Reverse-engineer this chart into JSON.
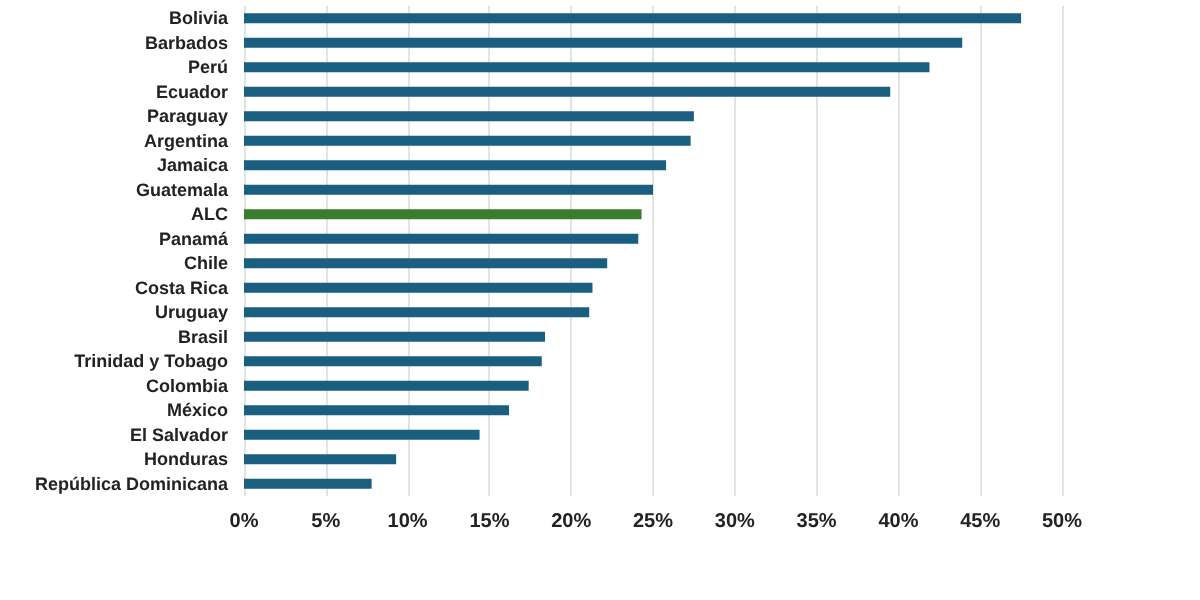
{
  "chart_data": {
    "type": "bar",
    "orientation": "horizontal",
    "categories": [
      "Bolivia",
      "Barbados",
      "Perú",
      "Ecuador",
      "Paraguay",
      "Argentina",
      "Jamaica",
      "Guatemala",
      "ALC",
      "Panamá",
      "Chile",
      "Costa Rica",
      "Uruguay",
      "Brasil",
      "Trinidad y Tobago",
      "Colombia",
      "México",
      "El Salvador",
      "Honduras",
      "República Dominicana"
    ],
    "values": [
      47.5,
      43.9,
      41.9,
      39.5,
      27.5,
      27.3,
      25.8,
      25.0,
      24.3,
      24.1,
      22.2,
      21.3,
      21.1,
      18.4,
      18.2,
      17.4,
      16.2,
      14.4,
      9.3,
      7.8
    ],
    "colors": [
      "#1a5e80",
      "#1a5e80",
      "#1a5e80",
      "#1a5e80",
      "#1a5e80",
      "#1a5e80",
      "#1a5e80",
      "#1a5e80",
      "#3a7d2c",
      "#1a5e80",
      "#1a5e80",
      "#1a5e80",
      "#1a5e80",
      "#1a5e80",
      "#1a5e80",
      "#1a5e80",
      "#1a5e80",
      "#1a5e80",
      "#1a5e80",
      "#1a5e80"
    ],
    "xlim": [
      0,
      50
    ],
    "xticks": [
      {
        "value": 0,
        "label": "0%"
      },
      {
        "value": 5,
        "label": "5%"
      },
      {
        "value": 10,
        "label": "10%"
      },
      {
        "value": 15,
        "label": "15%"
      },
      {
        "value": 20,
        "label": "20%"
      },
      {
        "value": 25,
        "label": "25%"
      },
      {
        "value": 30,
        "label": "30%"
      },
      {
        "value": 35,
        "label": "35%"
      },
      {
        "value": 40,
        "label": "40%"
      },
      {
        "value": 45,
        "label": "45%"
      },
      {
        "value": 50,
        "label": "50%"
      }
    ],
    "grid": "x"
  }
}
